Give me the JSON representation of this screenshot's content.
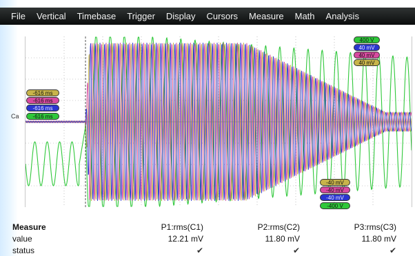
{
  "menu": [
    "File",
    "Vertical",
    "Timebase",
    "Trigger",
    "Display",
    "Cursors",
    "Measure",
    "Math",
    "Analysis"
  ],
  "channel_label": "Ca",
  "left_cursor_tags": [
    {
      "text": "-616 ms",
      "color": "#c8b44a"
    },
    {
      "text": "-616 ms",
      "color": "#d84aa0"
    },
    {
      "text": "-616 ms",
      "color": "#2a35d0"
    },
    {
      "text": "-616 ms",
      "color": "#2fc83a"
    }
  ],
  "top_right_tags": [
    {
      "text": "400 V",
      "color": "#2fc83a"
    },
    {
      "text": "40 mV",
      "color": "#2a35d0"
    },
    {
      "text": "40 mV",
      "color": "#d84aa0"
    },
    {
      "text": "40 mV",
      "color": "#c8b44a"
    }
  ],
  "bottom_right_tags": [
    {
      "text": "-40 mV",
      "color": "#c8b44a"
    },
    {
      "text": "-40 mV",
      "color": "#d84aa0"
    },
    {
      "text": "-40 mV",
      "color": "#2a35d0"
    },
    {
      "text": "-400 V",
      "color": "#2fc83a"
    }
  ],
  "measure": {
    "header": "Measure",
    "row_value_label": "value",
    "row_status_label": "status",
    "columns": [
      {
        "name": "P1:rms(C1)",
        "value": "12.21 mV",
        "status": "✔"
      },
      {
        "name": "P2:rms(C2)",
        "value": "11.80 mV",
        "status": "✔"
      },
      {
        "name": "P3:rms(C3)",
        "value": "11.80 mV",
        "status": "✔"
      }
    ]
  },
  "colors": {
    "ch_yellow": "#c8b44a",
    "ch_pink": "#d84aa0",
    "ch_blue": "#2a35d0",
    "ch_green": "#2fc83a",
    "grid": "#9a9a9a",
    "menubar": "#1a1d1d"
  }
}
